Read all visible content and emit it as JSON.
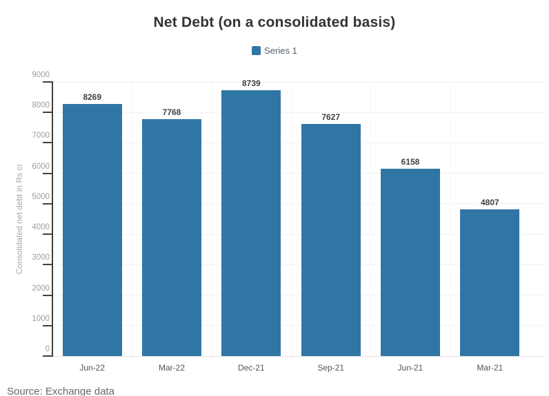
{
  "title": "Net Debt (on a consolidated basis)",
  "source": "Source: Exchange data",
  "chart_data": {
    "type": "bar",
    "title": "Net Debt (on a consolidated basis)",
    "categories": [
      "Jun-22",
      "Mar-22",
      "Dec-21",
      "Sep-21",
      "Jun-21",
      "Mar-21"
    ],
    "series": [
      {
        "name": "Series 1",
        "values": [
          8269,
          7768,
          8739,
          7627,
          6158,
          4807
        ]
      }
    ],
    "xlabel": "",
    "ylabel": "Consolidated net debt in Rs cr",
    "ylim": [
      0,
      9000
    ],
    "ytick_interval": 1000,
    "grid": true,
    "value_labels": true,
    "legend_position": "top",
    "bar_color": "#3076a5"
  },
  "colors": {
    "bar": "#3076a5",
    "title_text": "#333333",
    "value_label": "#404040",
    "y_tick_label": "#9c9c9c",
    "x_tick_label": "#555555",
    "axis": "#3f3f3f",
    "gridline": "#f1f1f1",
    "baseline": "#e2e2e2",
    "y_axis_title": "#a8a8a8",
    "legend_text": "#52606b",
    "source_text": "#666666",
    "background": "#ffffff"
  }
}
